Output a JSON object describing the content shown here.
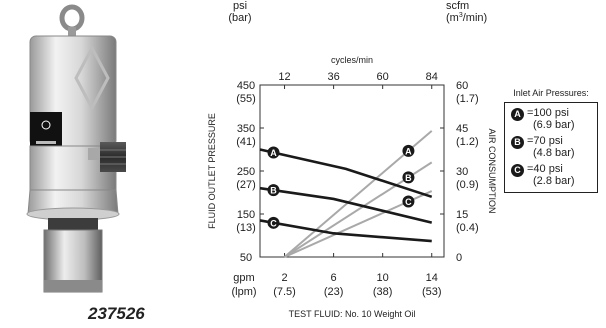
{
  "part_number": "237526",
  "chart_data": {
    "type": "line",
    "x_axis": {
      "unit": "gpm",
      "unit_alt": "(lpm)",
      "range": [
        0,
        15
      ],
      "ticks": [
        {
          "value": 2,
          "label": "2",
          "alt": "(7.5)"
        },
        {
          "value": 6,
          "label": "6",
          "alt": "(23)"
        },
        {
          "value": 10,
          "label": "10",
          "alt": "(38)"
        },
        {
          "value": 14,
          "label": "14",
          "alt": "(53)"
        }
      ],
      "title": "TEST FLUID: No. 10 Weight Oil"
    },
    "top_axis": {
      "title": "cycles/min",
      "ticks": [
        {
          "value": 2,
          "label": "12"
        },
        {
          "value": 6,
          "label": "36"
        },
        {
          "value": 10,
          "label": "60"
        },
        {
          "value": 14,
          "label": "84"
        }
      ]
    },
    "left_axis": {
      "title": "FLUID OUTLET PRESSURE",
      "unit": "psi",
      "unit_alt": "(bar)",
      "range": [
        50,
        450
      ],
      "ticks": [
        {
          "value": 450,
          "label": "450",
          "alt": "(55)"
        },
        {
          "value": 350,
          "label": "350",
          "alt": "(41)"
        },
        {
          "value": 250,
          "label": "250",
          "alt": "(27)"
        },
        {
          "value": 150,
          "label": "150",
          "alt": "(13)"
        },
        {
          "value": 50,
          "label": "50",
          "alt": ""
        }
      ]
    },
    "right_axis": {
      "title": "AIR CONSUMPTION",
      "unit": "scfm",
      "unit_alt": "(m3/min)",
      "range": [
        0,
        60
      ],
      "ticks": [
        {
          "value": 60,
          "label": "60",
          "alt": "(1.7)"
        },
        {
          "value": 45,
          "label": "45",
          "alt": "(1.2)"
        },
        {
          "value": 30,
          "label": "30",
          "alt": "(0.9)"
        },
        {
          "value": 15,
          "label": "15",
          "alt": "(0.4)"
        },
        {
          "value": 0,
          "label": "0",
          "alt": ""
        }
      ]
    },
    "series": [
      {
        "marker": "A",
        "kind": "pressure",
        "points": [
          [
            0,
            300
          ],
          [
            7,
            255
          ],
          [
            14,
            190
          ]
        ]
      },
      {
        "marker": "B",
        "kind": "pressure",
        "points": [
          [
            0,
            210
          ],
          [
            6,
            185
          ],
          [
            14,
            130
          ]
        ]
      },
      {
        "marker": "C",
        "kind": "pressure",
        "points": [
          [
            0,
            135
          ],
          [
            6,
            105
          ],
          [
            14,
            87
          ]
        ]
      },
      {
        "marker": "A",
        "kind": "air",
        "points": [
          [
            2,
            0
          ],
          [
            14,
            44
          ]
        ]
      },
      {
        "marker": "B",
        "kind": "air",
        "points": [
          [
            2,
            0
          ],
          [
            14,
            33
          ]
        ]
      },
      {
        "marker": "C",
        "kind": "air",
        "points": [
          [
            2,
            0
          ],
          [
            14,
            23
          ]
        ]
      }
    ],
    "legend": {
      "title": "Inlet Air Pressures:",
      "position": "right",
      "entries": [
        {
          "marker": "A",
          "psi": "=100 psi",
          "bar": "(6.9 bar)"
        },
        {
          "marker": "B",
          "psi": "=70 psi",
          "bar": "(4.8 bar)"
        },
        {
          "marker": "C",
          "psi": "=40 psi",
          "bar": "(2.8 bar)"
        }
      ]
    }
  }
}
